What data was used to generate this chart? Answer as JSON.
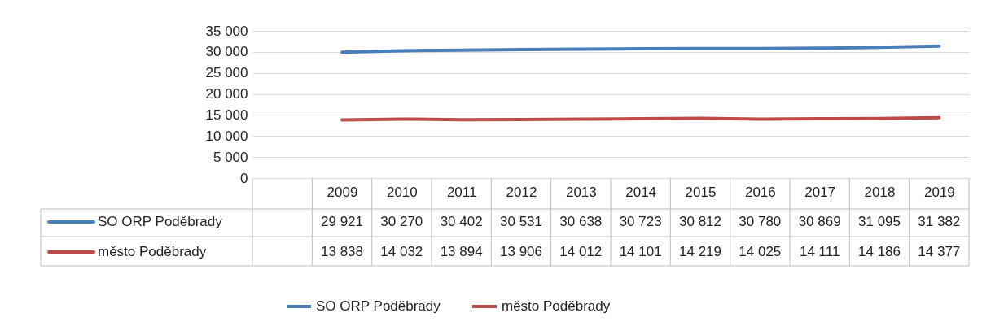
{
  "chart_data": {
    "type": "line",
    "categories": [
      null,
      "2009",
      "2010",
      "2011",
      "2012",
      "2013",
      "2014",
      "2015",
      "2016",
      "2017",
      "2018",
      "2019"
    ],
    "series": [
      {
        "name": "SO ORP Poděbrady",
        "color": "#4a7ebb",
        "values": [
          null,
          29921,
          30270,
          30402,
          30531,
          30638,
          30723,
          30812,
          30780,
          30869,
          31095,
          31382
        ]
      },
      {
        "name": "město Poděbrady",
        "color": "#be4b48",
        "values": [
          null,
          13838,
          14032,
          13894,
          13906,
          14012,
          14101,
          14219,
          14025,
          14111,
          14186,
          14377
        ]
      }
    ],
    "ylim": [
      0,
      35000
    ],
    "yticks": [
      0,
      {
        "value": 5000,
        "label": "5 000"
      },
      {
        "value": 10000,
        "label": "10 000"
      },
      {
        "value": 15000,
        "label": "15 000"
      },
      {
        "value": 20000,
        "label": "20 000"
      },
      {
        "value": 25000,
        "label": "25 000"
      },
      {
        "value": 30000,
        "label": "30 000"
      },
      {
        "value": 35000,
        "label": "35 000"
      }
    ],
    "grid": "y",
    "legend": "bottom",
    "data_labels": true
  }
}
